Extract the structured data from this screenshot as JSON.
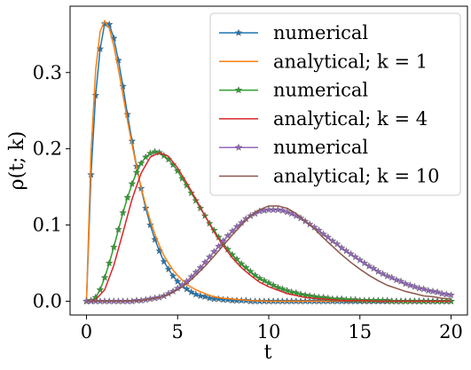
{
  "chart_data": {
    "type": "line",
    "title": "",
    "xlabel": "t",
    "ylabel": "ρ(t; k)",
    "xlim": [
      -0.9,
      20.9
    ],
    "ylim": [
      -0.018,
      0.387
    ],
    "x_ticks": [
      0,
      5,
      10,
      15,
      20
    ],
    "x_tick_labels": [
      "0",
      "5",
      "10",
      "15",
      "20"
    ],
    "y_ticks": [
      0.0,
      0.1,
      0.2,
      0.3
    ],
    "y_tick_labels": [
      "0.0",
      "0.1",
      "0.2",
      "0.3"
    ],
    "grid": false,
    "legend_position": "top-right",
    "series": [
      {
        "name": "numerical",
        "style": "line-star",
        "color": "#1f77b4",
        "x": [
          0.0,
          0.25,
          0.5,
          0.75,
          1.0,
          1.25,
          1.5,
          1.75,
          2.0,
          2.25,
          2.5,
          2.75,
          3.0,
          3.25,
          3.5,
          3.75,
          4.0,
          4.25,
          4.5,
          4.75,
          5.0,
          5.25,
          5.5,
          5.75,
          6.0,
          6.25,
          6.5,
          6.75,
          7.0,
          7.25,
          7.5,
          7.75,
          8.0,
          8.25,
          8.5,
          8.75,
          9.0,
          9.25,
          9.5,
          9.75,
          10.0,
          10.25,
          10.5,
          10.75,
          11.0,
          11.25,
          11.5,
          11.75,
          12.0,
          12.25,
          12.5,
          12.75,
          13.0,
          13.25,
          13.5,
          13.75,
          14.0,
          14.25,
          14.5,
          14.75,
          15.0,
          15.25,
          15.5,
          15.75,
          16.0,
          16.25,
          16.5,
          16.75,
          17.0,
          17.25,
          17.5,
          17.75,
          18.0,
          18.25,
          18.5,
          18.75,
          19.0,
          19.25,
          19.5,
          19.75,
          20.0
        ],
        "y": [
          0.0,
          0.166,
          0.27,
          0.331,
          0.364,
          0.363,
          0.345,
          0.316,
          0.282,
          0.245,
          0.21,
          0.177,
          0.148,
          0.122,
          0.1,
          0.081,
          0.066,
          0.052,
          0.042,
          0.033,
          0.026,
          0.02,
          0.016,
          0.012,
          0.009,
          0.007,
          0.006,
          0.004,
          0.003,
          0.003,
          0.002,
          0.002,
          0.001,
          0.001,
          0.001,
          0.001,
          0.0,
          0.0,
          0.0,
          0.0,
          0.0,
          0.0,
          0.0,
          0.0,
          0.0,
          0.0,
          0.0,
          0.0,
          0.0,
          0.0,
          0.0,
          0.0,
          0.0,
          0.0,
          0.0,
          0.0,
          0.0,
          0.0,
          0.0,
          0.0,
          0.0,
          0.0,
          0.0,
          0.0,
          0.0,
          0.0,
          0.0,
          0.0,
          0.0,
          0.0,
          0.0,
          0.0,
          0.0,
          0.0,
          0.0,
          0.0,
          0.0,
          0.0,
          0.0,
          0.0,
          0.0
        ]
      },
      {
        "name": "analytical; k = 1",
        "style": "line",
        "color": "#ff7f0e",
        "x": [
          0.0,
          0.25,
          0.5,
          0.75,
          1.0,
          1.25,
          1.5,
          1.75,
          2.0,
          2.25,
          2.5,
          2.75,
          3.0,
          3.25,
          3.5,
          3.75,
          4.0,
          4.25,
          4.5,
          4.75,
          5.0,
          5.5,
          6.0,
          6.5,
          7.0,
          7.5,
          8.0,
          9.0,
          10.0,
          11.0,
          12.0,
          14.0,
          16.0,
          18.0,
          20.0
        ],
        "y": [
          0.0,
          0.195,
          0.303,
          0.354,
          0.368,
          0.358,
          0.335,
          0.304,
          0.271,
          0.237,
          0.205,
          0.176,
          0.149,
          0.126,
          0.106,
          0.088,
          0.073,
          0.06,
          0.05,
          0.041,
          0.034,
          0.022,
          0.015,
          0.01,
          0.006,
          0.004,
          0.003,
          0.001,
          0.0,
          0.0,
          0.0,
          0.0,
          0.0,
          0.0,
          0.0
        ]
      },
      {
        "name": "numerical",
        "style": "line-star",
        "color": "#2ca02c",
        "x": [
          0.0,
          0.25,
          0.5,
          0.75,
          1.0,
          1.25,
          1.5,
          1.75,
          2.0,
          2.25,
          2.5,
          2.75,
          3.0,
          3.25,
          3.5,
          3.75,
          4.0,
          4.25,
          4.5,
          4.75,
          5.0,
          5.25,
          5.5,
          5.75,
          6.0,
          6.25,
          6.5,
          6.75,
          7.0,
          7.25,
          7.5,
          7.75,
          8.0,
          8.25,
          8.5,
          8.75,
          9.0,
          9.25,
          9.5,
          9.75,
          10.0,
          10.25,
          10.5,
          10.75,
          11.0,
          11.25,
          11.5,
          11.75,
          12.0,
          12.25,
          12.5,
          12.75,
          13.0,
          13.25,
          13.5,
          13.75,
          14.0,
          14.25,
          14.5,
          14.75,
          15.0,
          15.25,
          15.5,
          15.75,
          16.0,
          16.25,
          16.5,
          16.75,
          17.0,
          17.25,
          17.5,
          17.75,
          18.0,
          18.25,
          18.5,
          18.75,
          19.0,
          19.25,
          19.5,
          19.75,
          20.0
        ],
        "y": [
          0.0,
          0.001,
          0.005,
          0.015,
          0.031,
          0.05,
          0.071,
          0.094,
          0.116,
          0.136,
          0.154,
          0.169,
          0.181,
          0.189,
          0.194,
          0.196,
          0.195,
          0.191,
          0.186,
          0.179,
          0.171,
          0.161,
          0.152,
          0.142,
          0.132,
          0.122,
          0.112,
          0.102,
          0.093,
          0.084,
          0.076,
          0.068,
          0.061,
          0.055,
          0.049,
          0.044,
          0.039,
          0.034,
          0.03,
          0.027,
          0.024,
          0.021,
          0.018,
          0.016,
          0.014,
          0.012,
          0.011,
          0.009,
          0.008,
          0.007,
          0.006,
          0.005,
          0.005,
          0.004,
          0.003,
          0.003,
          0.003,
          0.002,
          0.002,
          0.002,
          0.001,
          0.001,
          0.001,
          0.001,
          0.001,
          0.001,
          0.001,
          0.0,
          0.0,
          0.0,
          0.0,
          0.0,
          0.0,
          0.0,
          0.0,
          0.0,
          0.0,
          0.0,
          0.0,
          0.0,
          0.0
        ]
      },
      {
        "name": "analytical; k = 4",
        "style": "line",
        "color": "#d62728",
        "x": [
          0.0,
          0.5,
          1.0,
          1.5,
          2.0,
          2.5,
          3.0,
          3.5,
          4.0,
          4.5,
          5.0,
          5.5,
          6.0,
          6.5,
          7.0,
          7.5,
          8.0,
          8.5,
          9.0,
          9.5,
          10.0,
          11.0,
          12.0,
          13.0,
          14.0,
          15.0,
          16.0,
          17.0,
          18.0,
          19.0,
          20.0
        ],
        "y": [
          0.0,
          0.002,
          0.015,
          0.047,
          0.09,
          0.134,
          0.168,
          0.189,
          0.195,
          0.19,
          0.175,
          0.155,
          0.134,
          0.112,
          0.091,
          0.073,
          0.057,
          0.044,
          0.034,
          0.025,
          0.019,
          0.01,
          0.005,
          0.003,
          0.001,
          0.001,
          0.0,
          0.0,
          0.0,
          0.0,
          0.0
        ]
      },
      {
        "name": "numerical",
        "style": "line-star",
        "color": "#9467bd",
        "x": [
          0.0,
          0.25,
          0.5,
          0.75,
          1.0,
          1.25,
          1.5,
          1.75,
          2.0,
          2.25,
          2.5,
          2.75,
          3.0,
          3.25,
          3.5,
          3.75,
          4.0,
          4.25,
          4.5,
          4.75,
          5.0,
          5.25,
          5.5,
          5.75,
          6.0,
          6.25,
          6.5,
          6.75,
          7.0,
          7.25,
          7.5,
          7.75,
          8.0,
          8.25,
          8.5,
          8.75,
          9.0,
          9.25,
          9.5,
          9.75,
          10.0,
          10.25,
          10.5,
          10.75,
          11.0,
          11.25,
          11.5,
          11.75,
          12.0,
          12.25,
          12.5,
          12.75,
          13.0,
          13.25,
          13.5,
          13.75,
          14.0,
          14.25,
          14.5,
          14.75,
          15.0,
          15.25,
          15.5,
          15.75,
          16.0,
          16.25,
          16.5,
          16.75,
          17.0,
          17.25,
          17.5,
          17.75,
          18.0,
          18.25,
          18.5,
          18.75,
          19.0,
          19.25,
          19.5,
          19.75,
          20.0
        ],
        "y": [
          0.0,
          0.0,
          0.0,
          0.0,
          0.0,
          0.0,
          0.0,
          0.0,
          0.0,
          0.0,
          0.0,
          0.001,
          0.001,
          0.002,
          0.003,
          0.004,
          0.005,
          0.007,
          0.01,
          0.013,
          0.017,
          0.021,
          0.026,
          0.032,
          0.038,
          0.044,
          0.051,
          0.058,
          0.065,
          0.072,
          0.079,
          0.086,
          0.092,
          0.098,
          0.103,
          0.108,
          0.112,
          0.115,
          0.118,
          0.119,
          0.12,
          0.12,
          0.12,
          0.119,
          0.117,
          0.115,
          0.112,
          0.109,
          0.105,
          0.101,
          0.097,
          0.093,
          0.088,
          0.084,
          0.079,
          0.075,
          0.07,
          0.066,
          0.062,
          0.058,
          0.054,
          0.05,
          0.046,
          0.043,
          0.039,
          0.036,
          0.033,
          0.031,
          0.028,
          0.026,
          0.023,
          0.021,
          0.019,
          0.017,
          0.016,
          0.014,
          0.013,
          0.012,
          0.01,
          0.009,
          0.008
        ]
      },
      {
        "name": "analytical; k = 10",
        "style": "line",
        "color": "#8c564b",
        "x": [
          0.0,
          1.0,
          2.0,
          3.0,
          4.0,
          4.5,
          5.0,
          5.5,
          6.0,
          6.5,
          7.0,
          7.5,
          8.0,
          8.5,
          9.0,
          9.5,
          10.0,
          10.5,
          11.0,
          11.5,
          12.0,
          12.5,
          13.0,
          13.5,
          14.0,
          14.5,
          15.0,
          15.5,
          16.0,
          16.5,
          17.0,
          17.5,
          18.0,
          18.5,
          19.0,
          19.5,
          20.0
        ],
        "y": [
          0.0,
          0.0,
          0.0,
          0.001,
          0.005,
          0.009,
          0.015,
          0.023,
          0.034,
          0.046,
          0.059,
          0.073,
          0.087,
          0.1,
          0.112,
          0.12,
          0.125,
          0.125,
          0.122,
          0.115,
          0.105,
          0.095,
          0.083,
          0.072,
          0.061,
          0.051,
          0.042,
          0.034,
          0.027,
          0.021,
          0.017,
          0.013,
          0.01,
          0.007,
          0.006,
          0.004,
          0.003
        ]
      }
    ]
  }
}
